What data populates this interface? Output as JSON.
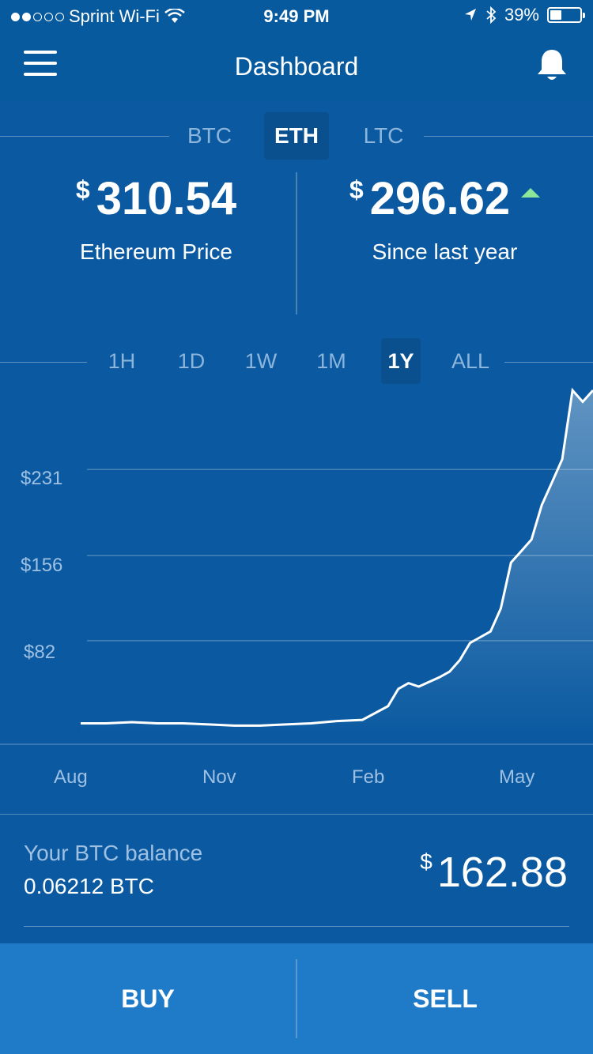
{
  "status_bar": {
    "carrier": "Sprint Wi-Fi",
    "time": "9:49 PM",
    "battery_percent": "39%",
    "battery_level": 0.39,
    "signal_bars_filled": 2,
    "signal_bars_total": 5,
    "icons": [
      "wifi-icon",
      "location-arrow-icon",
      "bluetooth-icon",
      "battery-icon"
    ]
  },
  "navbar": {
    "title": "Dashboard",
    "left_icon": "hamburger-menu-icon",
    "right_icon": "bell-icon"
  },
  "currency_tabs": [
    {
      "label": "BTC",
      "active": false
    },
    {
      "label": "ETH",
      "active": true
    },
    {
      "label": "LTC",
      "active": false
    }
  ],
  "price": {
    "currency_symbol": "$",
    "current": "310.54",
    "current_label": "Ethereum Price",
    "change": "296.62",
    "change_label": "Since last year",
    "change_direction": "up"
  },
  "ranges": [
    {
      "label": "1H",
      "active": false
    },
    {
      "label": "1D",
      "active": false
    },
    {
      "label": "1W",
      "active": false
    },
    {
      "label": "1M",
      "active": false
    },
    {
      "label": "1Y",
      "active": true
    },
    {
      "label": "ALL",
      "active": false
    }
  ],
  "chart_data": {
    "type": "line",
    "y_tick_labels": [
      "$231",
      "$156",
      "$82"
    ],
    "y_ticks": [
      231,
      156,
      82
    ],
    "x_tick_labels": [
      "Aug",
      "Nov",
      "Feb",
      "May"
    ],
    "ylim": [
      0,
      300
    ],
    "grid": true,
    "x": [
      0,
      0.05,
      0.1,
      0.15,
      0.2,
      0.25,
      0.3,
      0.35,
      0.4,
      0.45,
      0.5,
      0.55,
      0.6,
      0.62,
      0.64,
      0.66,
      0.68,
      0.7,
      0.72,
      0.74,
      0.76,
      0.78,
      0.8,
      0.82,
      0.84,
      0.86,
      0.88,
      0.9,
      0.92,
      0.94,
      0.96,
      0.98,
      1.0
    ],
    "values": [
      10,
      10,
      11,
      10,
      10,
      9,
      8,
      8,
      9,
      10,
      12,
      13,
      25,
      40,
      45,
      42,
      46,
      50,
      55,
      65,
      80,
      85,
      90,
      110,
      150,
      160,
      170,
      200,
      220,
      240,
      300,
      290,
      300
    ],
    "stroke": "#ffffff",
    "fill_top": "rgba(255,255,255,0.35)",
    "fill_bottom": "rgba(255,255,255,0.0)"
  },
  "balance": {
    "title": "Your BTC balance",
    "btc_amount": "0.06212 BTC",
    "currency_symbol": "$",
    "usd_value": "162.88"
  },
  "actions": {
    "buy_label": "BUY",
    "sell_label": "SELL"
  },
  "colors": {
    "background": "#0b5aa1",
    "nav_background": "#075a9d",
    "action_bar": "#1f7ac7",
    "up_arrow": "#8ce79a",
    "muted_text": "#8cb5dc"
  }
}
